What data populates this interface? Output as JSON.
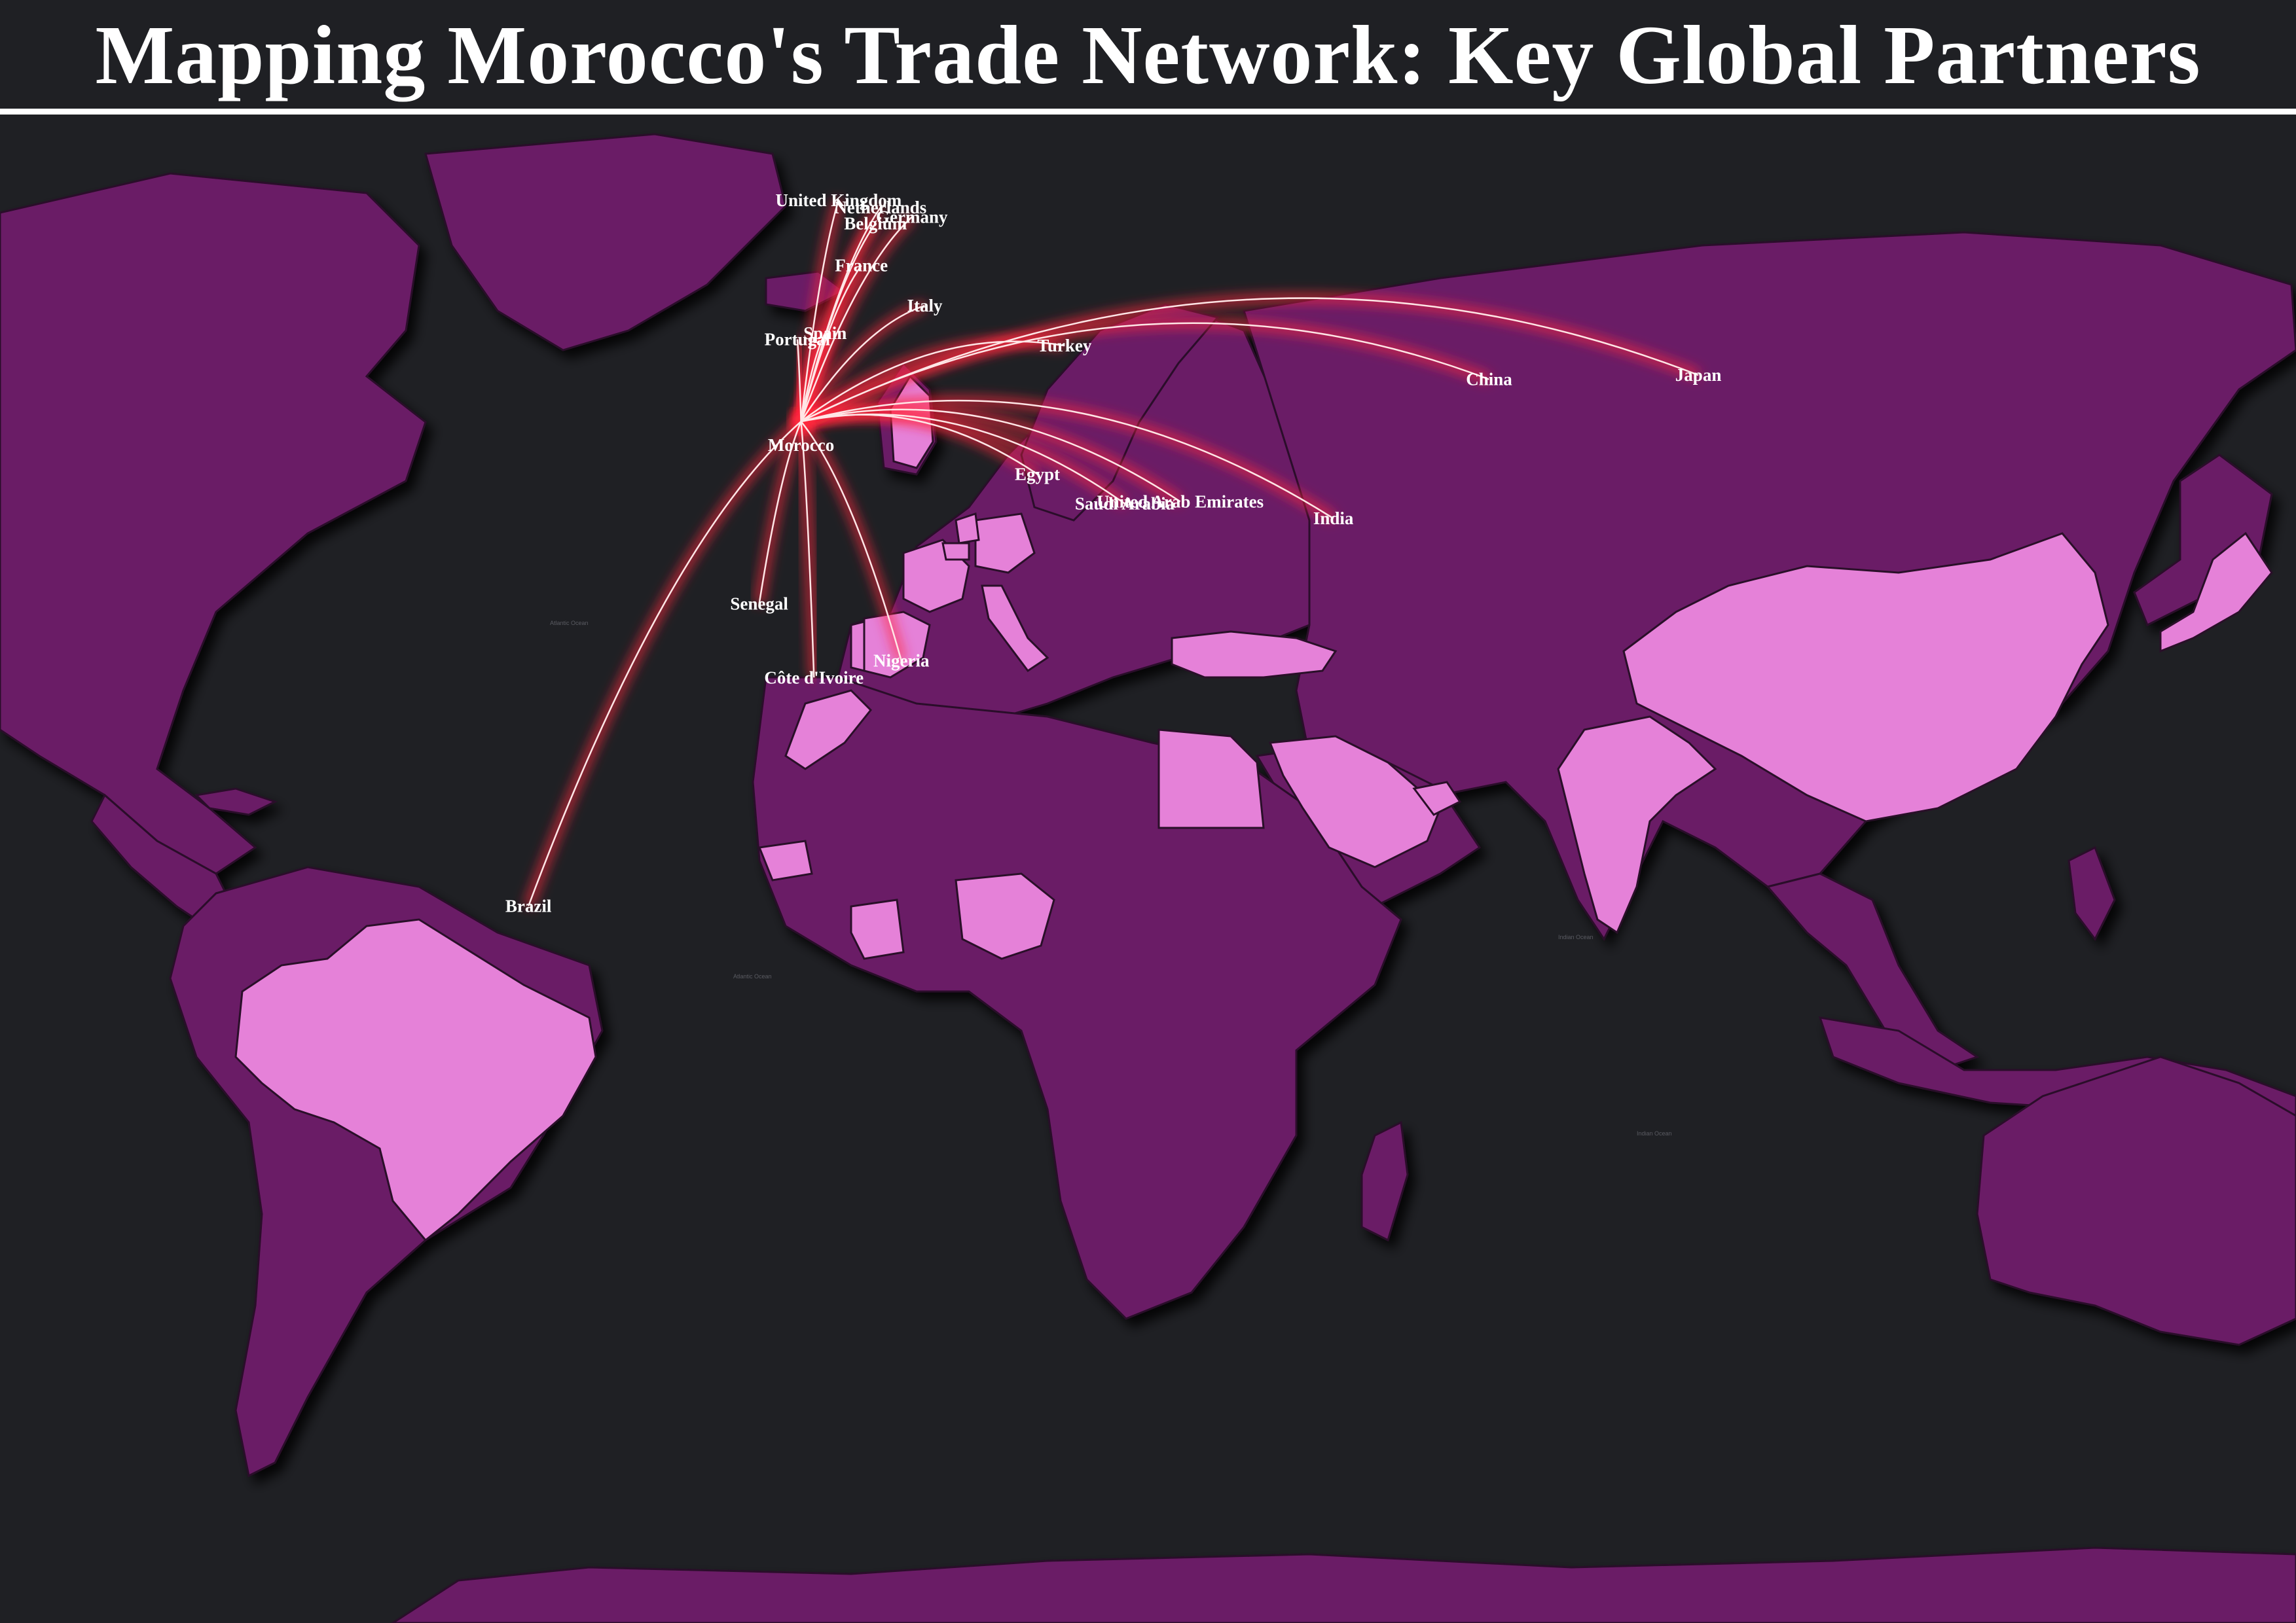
{
  "title": "Mapping Morocco's Trade Network: Key Global Partners",
  "colors": {
    "background": "#1f2024",
    "land": "#6b1a66",
    "highlight": "#e581d8",
    "route_glow": "#ff2a3c",
    "route_core": "#ffe6e6",
    "label": "#ffffff"
  },
  "origin": {
    "name": "Morocco",
    "lon": -7.6,
    "lat": 31.8
  },
  "partners": [
    {
      "name": "United Kingdom",
      "lon": -1.5,
      "lat": 52.8
    },
    {
      "name": "Netherlands",
      "lon": 5.3,
      "lat": 52.1
    },
    {
      "name": "Belgium",
      "lon": 4.5,
      "lat": 50.6
    },
    {
      "name": "Germany",
      "lon": 10.4,
      "lat": 51.2
    },
    {
      "name": "France",
      "lon": 2.2,
      "lat": 46.6
    },
    {
      "name": "Portugal",
      "lon": -8.2,
      "lat": 39.6
    },
    {
      "name": "Spain",
      "lon": -3.7,
      "lat": 40.2
    },
    {
      "name": "Italy",
      "lon": 12.5,
      "lat": 42.8
    },
    {
      "name": "Turkey",
      "lon": 35.2,
      "lat": 39.0
    },
    {
      "name": "Egypt",
      "lon": 30.8,
      "lat": 26.8
    },
    {
      "name": "Saudi Arabia",
      "lon": 45.0,
      "lat": 24.0
    },
    {
      "name": "United Arab Emirates",
      "lon": 54.0,
      "lat": 24.2
    },
    {
      "name": "India",
      "lon": 78.9,
      "lat": 22.6
    },
    {
      "name": "China",
      "lon": 104.2,
      "lat": 35.8
    },
    {
      "name": "Japan",
      "lon": 138.2,
      "lat": 36.2
    },
    {
      "name": "Senegal",
      "lon": -14.4,
      "lat": 14.5
    },
    {
      "name": "Côte d'Ivoire",
      "lon": -5.5,
      "lat": 7.5
    },
    {
      "name": "Nigeria",
      "lon": 8.7,
      "lat": 9.1
    },
    {
      "name": "Brazil",
      "lon": -51.9,
      "lat": -14.2
    }
  ]
}
